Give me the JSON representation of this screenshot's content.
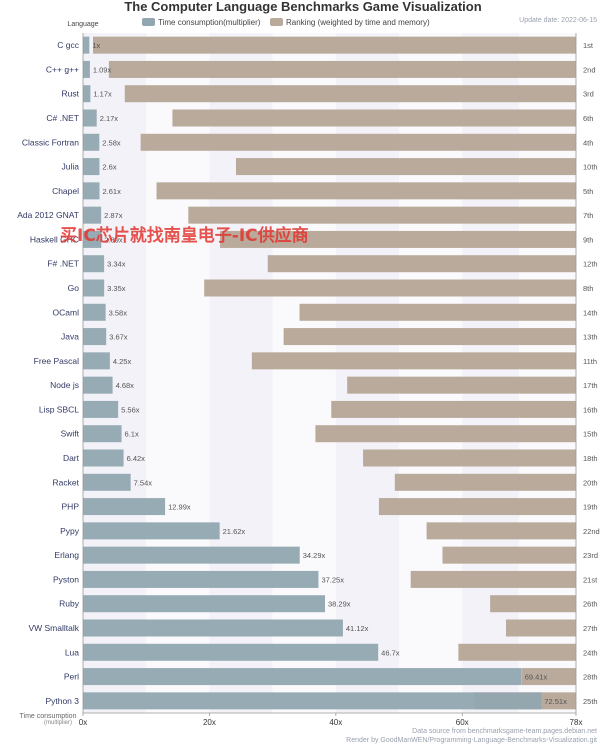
{
  "chart_data": {
    "type": "bar",
    "title": "The Computer Language Benchmarks Game Visualization",
    "update_date": "Update date: 2022-06-15",
    "legend": {
      "placement": "top-center",
      "axis_label": "Language",
      "entries": [
        {
          "label": "Time consumption(multiplier)",
          "color": "#91a6b0"
        },
        {
          "label": "Ranking (weighted by time and memory)",
          "color": "#b9aa9b"
        }
      ]
    },
    "categories": [
      "C gcc",
      "C++ g++",
      "Rust",
      "C# .NET",
      "Classic Fortran",
      "Julia",
      "Chapel",
      "Ada 2012 GNAT",
      "Haskell GHC",
      "F# .NET",
      "Go",
      "OCaml",
      "Java",
      "Free Pascal",
      "Node js",
      "Lisp SBCL",
      "Swift",
      "Dart",
      "Racket",
      "PHP",
      "Pypy",
      "Erlang",
      "Pyston",
      "Ruby",
      "VW Smalltalk",
      "Lua",
      "Perl",
      "Python 3"
    ],
    "series": [
      {
        "name": "Time consumption(multiplier)",
        "values": [
          1,
          1.09,
          1.17,
          2.17,
          2.58,
          2.6,
          2.61,
          2.87,
          2.89,
          3.34,
          3.35,
          3.58,
          3.67,
          4.25,
          4.68,
          5.56,
          6.1,
          6.42,
          7.54,
          12.99,
          21.62,
          34.29,
          37.25,
          38.29,
          41.12,
          46.7,
          69.41,
          72.51
        ],
        "value_labels": [
          "1x",
          "1.09x",
          "1.17x",
          "2.17x",
          "2.58x",
          "2.6x",
          "2.61x",
          "2.87x",
          "2.89x",
          "3.34x",
          "3.35x",
          "3.58x",
          "3.67x",
          "4.25x",
          "4.68x",
          "5.56x",
          "6.1x",
          "6.42x",
          "7.54x",
          "12.99x",
          "21.62x",
          "34.29x",
          "37.25x",
          "38.29x",
          "41.12x",
          "46.7x",
          "69.41x",
          "72.51x"
        ]
      },
      {
        "name": "Ranking (weighted by time and memory)",
        "values": [
          1,
          2,
          3,
          6,
          4,
          10,
          5,
          7,
          9,
          12,
          8,
          14,
          13,
          11,
          17,
          16,
          15,
          18,
          20,
          19,
          22,
          23,
          21,
          26,
          27,
          24,
          28,
          25
        ],
        "rank_labels": [
          "1st",
          "2nd",
          "3rd",
          "6th",
          "4th",
          "10th",
          "5th",
          "7th",
          "9th",
          "12th",
          "8th",
          "14th",
          "13th",
          "11th",
          "17th",
          "16th",
          "15th",
          "18th",
          "20th",
          "19th",
          "22nd",
          "23rd",
          "21st",
          "26th",
          "27th",
          "24th",
          "28th",
          "25th"
        ]
      }
    ],
    "xlabel": "Time consumption",
    "xlabel_sub": "(multiplier)",
    "xlim": [
      0,
      78
    ],
    "xticks": [
      "0x",
      "20x",
      "40x",
      "60x",
      "78x"
    ],
    "xtick_values": [
      0,
      20,
      40,
      60,
      78
    ],
    "grid": true
  },
  "footer": {
    "source": "Data source from benchmarksgame-team.pages.debian.net",
    "render": "Render by GoodManWEN/Programming-Language-Benchmarks-Visualization.git"
  },
  "watermark": "买IC芯片就找南皇电子-IC供应商",
  "colors": {
    "time_bar": "#91a6b0",
    "rank_bar": "#b9aa9b",
    "band_a": "#f2f2f8",
    "band_b": "#fafafc"
  }
}
